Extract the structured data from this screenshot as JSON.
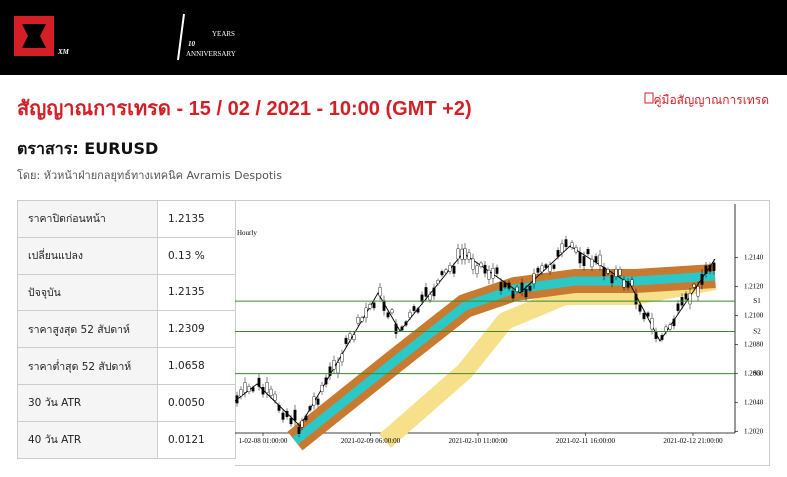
{
  "header": {
    "logo": "XM",
    "badge_number": "10",
    "badge_top": "YEARS",
    "badge_bottom": "ANNIVERSARY"
  },
  "title": "สัญญาณการเทรด - 15 / 02 / 2021 - 10:00 (GMT +2)",
  "guide_link": "คู่มือสัญญาณการเทรด",
  "instrument": "ตราสาร: EURUSD",
  "author": "โดย: หัวหน้าฝ่ายกลยุทธ์ทางเทคนิค Avramis Despotis",
  "table": {
    "rows": [
      [
        "ราคาปิดก่อนหน้า",
        "1.2135"
      ],
      [
        "เปลี่ยนแปลง",
        "0.13 %"
      ],
      [
        "ปัจจุบัน",
        "1.2135"
      ],
      [
        "ราคาสูงสุด 52 สัปดาห์",
        "1.2309"
      ],
      [
        "ราคาต่ำสุด 52 สัปดาห์",
        "1.0658"
      ],
      [
        "30 วัน ATR",
        "0.0050"
      ],
      [
        "40 วัน ATR",
        "0.0121"
      ]
    ]
  },
  "chart": {
    "timeframe": "Hourly",
    "ylim": [
      1.2019,
      1.2177
    ],
    "yticks": [
      {
        "value": 1.214,
        "label": "1.2140"
      },
      {
        "value": 1.212,
        "label": "1.2120"
      },
      {
        "value": 1.21,
        "label": "1.2100"
      },
      {
        "value": 1.208,
        "label": "1.2080"
      },
      {
        "value": 1.206,
        "label": "1.2060"
      },
      {
        "value": 1.204,
        "label": "1.2040"
      },
      {
        "value": 1.202,
        "label": "1.2020"
      }
    ],
    "xlabels": [
      "1-02-08 01:00:00",
      "2021-02-09 06:00:00",
      "2021-02-10 11:00:00",
      "2021-02-11 16:00:00",
      "2021-02-12 21:00:00"
    ],
    "levels": [
      {
        "label": "S1",
        "value": 1.211
      },
      {
        "label": "S2",
        "value": 1.2089
      },
      {
        "label": "S3",
        "value": 1.206
      }
    ]
  }
}
